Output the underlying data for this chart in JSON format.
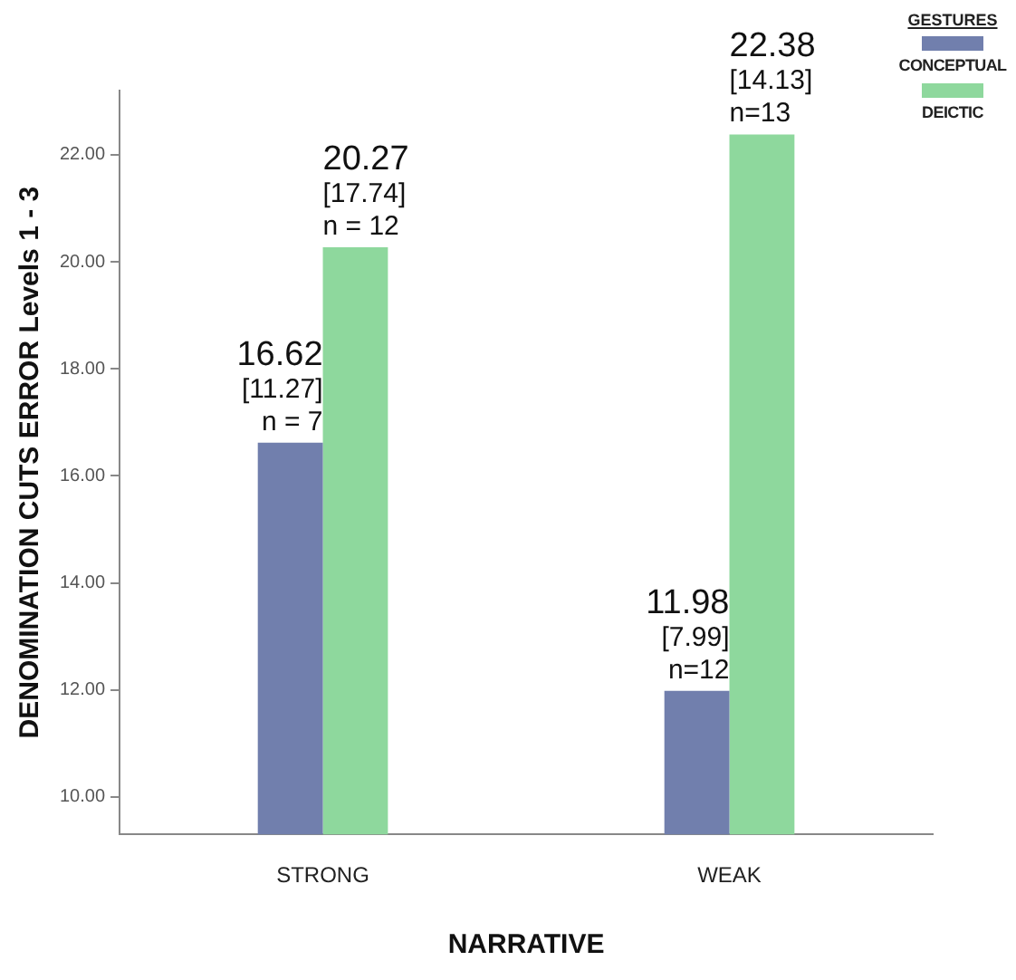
{
  "chart_data": {
    "type": "bar",
    "xlabel": "NARRATIVE",
    "ylabel": "DENOMINATION CUTS ERROR Levels 1 - 3",
    "legend_title": "GESTURES",
    "legend": "top right",
    "grid": false,
    "categories": [
      "STRONG",
      "WEAK"
    ],
    "series": [
      {
        "name": "CONCEPTUAL",
        "color": "#717fad",
        "values": [
          16.62,
          11.98
        ],
        "value_labels": [
          "16.62\n[11.27]\nn = 7",
          "11.98\n[7.99]\nn=12"
        ]
      },
      {
        "name": "DEICTIC",
        "color": "#8ed89d",
        "values": [
          20.27,
          22.38
        ],
        "value_labels": [
          "20.27\n[17.74]\nn = 12",
          "22.38\n[14.13]\nn=13"
        ]
      }
    ],
    "ylim": [
      9.3,
      23.2
    ],
    "yticks": [
      {
        "value": 10,
        "label": "10.00"
      },
      {
        "value": 12,
        "label": "12.00"
      },
      {
        "value": 14,
        "label": "14.00"
      },
      {
        "value": 16,
        "label": "16.00"
      },
      {
        "value": 18,
        "label": "18.00"
      },
      {
        "value": 20,
        "label": "20.00"
      },
      {
        "value": 22,
        "label": "22.00"
      }
    ]
  }
}
